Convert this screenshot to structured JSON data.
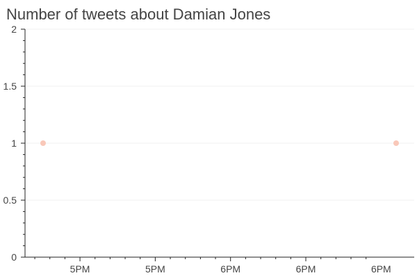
{
  "chart_data": {
    "type": "scatter",
    "title": "Number of tweets about Damian Jones",
    "xlabel": "",
    "ylabel": "",
    "ylim": [
      0,
      2
    ],
    "y_ticks": [
      "0",
      "0.5",
      "1",
      "1.5",
      "2"
    ],
    "x_ticks": [
      "5PM",
      "5PM",
      "6PM",
      "6PM",
      "6PM"
    ],
    "x_tick_positions": [
      1,
      2,
      3,
      4,
      5
    ],
    "xlim": [
      0.27,
      5.44
    ],
    "grid": true,
    "point_color": "#f9c8b9",
    "points": [
      {
        "x": 0.51,
        "y": 1
      },
      {
        "x": 5.2,
        "y": 1
      }
    ]
  }
}
